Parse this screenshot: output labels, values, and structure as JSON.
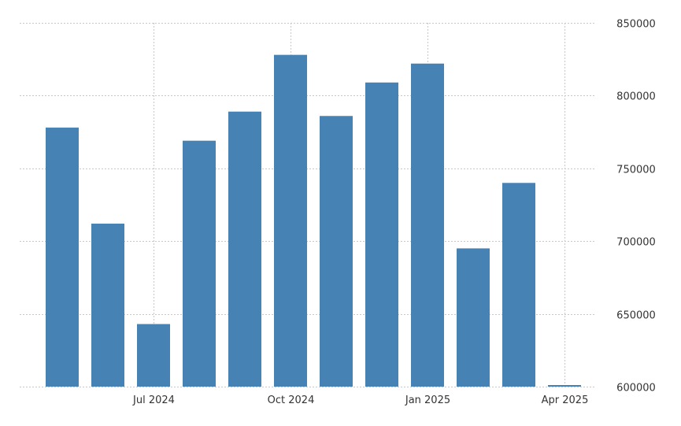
{
  "chart_data": {
    "type": "bar",
    "categories": [
      "May 2024",
      "Jun 2024",
      "Jul 2024",
      "Aug 2024",
      "Sep 2024",
      "Oct 2024",
      "Nov 2024",
      "Dec 2024",
      "Jan 2025",
      "Feb 2025",
      "Mar 2025",
      "Apr 2025"
    ],
    "values": [
      778000,
      712000,
      643000,
      769000,
      789000,
      828000,
      786000,
      809000,
      822000,
      695000,
      740000,
      601000
    ],
    "title": "",
    "xlabel": "",
    "ylabel": "",
    "ylim": [
      600000,
      850000
    ],
    "y_ticks": [
      600000,
      650000,
      700000,
      750000,
      800000,
      850000
    ],
    "y_tick_labels": [
      "600000",
      "650000",
      "700000",
      "750000",
      "800000",
      "850000"
    ],
    "x_tick_labels": [
      "Jul 2024",
      "Oct 2024",
      "Jan 2025",
      "Apr 2025"
    ],
    "x_tick_positions": [
      "Jul 2024",
      "Oct 2024",
      "Jan 2025",
      "Apr 2025"
    ],
    "grid": true,
    "y_axis_side": "right",
    "bar_color": "#4682b4"
  }
}
